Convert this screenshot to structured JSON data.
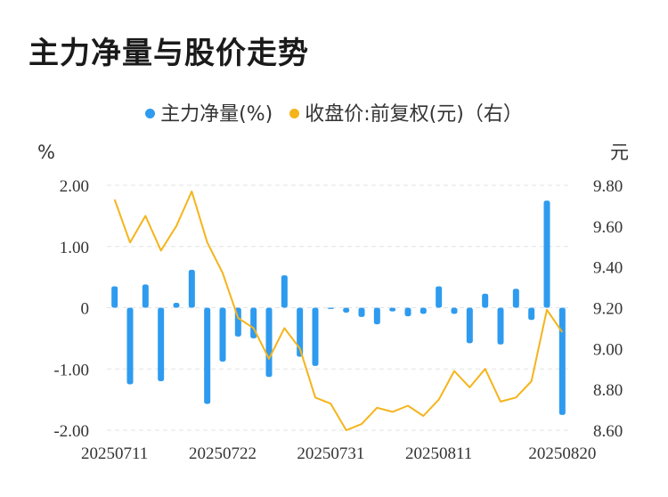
{
  "title": "主力净量与股价走势",
  "colors": {
    "bar": "#2e9bef",
    "line": "#f5b41b",
    "grid": "#e3e3e3",
    "text": "#333333"
  },
  "chart_data": {
    "type": "bar+line",
    "title": "主力净量与股价走势",
    "legend_position": "top-center",
    "series": [
      {
        "name": "主力净量(%)",
        "type": "bar",
        "axis": "left",
        "values": [
          0.35,
          -1.25,
          0.38,
          -1.2,
          0.08,
          0.62,
          -1.57,
          -0.88,
          -0.47,
          -0.5,
          -1.13,
          0.53,
          -0.8,
          -0.95,
          -0.02,
          -0.08,
          -0.15,
          -0.27,
          -0.06,
          -0.14,
          -0.1,
          0.35,
          -0.1,
          -0.58,
          0.23,
          -0.6,
          0.31,
          -0.2,
          1.75,
          -1.75
        ]
      },
      {
        "name": "收盘价:前复权(元)（右）",
        "type": "line",
        "axis": "right",
        "values": [
          9.73,
          9.52,
          9.65,
          9.48,
          9.6,
          9.77,
          9.52,
          9.37,
          9.15,
          9.1,
          8.95,
          9.1,
          9.0,
          8.76,
          8.73,
          8.6,
          8.63,
          8.71,
          8.69,
          8.72,
          8.67,
          8.75,
          8.89,
          8.81,
          8.9,
          8.74,
          8.76,
          8.84,
          9.19,
          9.08
        ]
      }
    ],
    "x_tick_labels": [
      "20250711",
      "20250722",
      "20250731",
      "20250811",
      "20250820"
    ],
    "x_tick_indices": [
      0,
      7,
      14,
      21,
      29
    ],
    "y_left": {
      "unit": "%",
      "range": [
        -2,
        2
      ],
      "ticks": [
        "2.00",
        "1.00",
        "0",
        "-1.00",
        "-2.00"
      ]
    },
    "y_right": {
      "unit": "元",
      "range": [
        8.6,
        9.8
      ],
      "ticks": [
        "9.80",
        "9.60",
        "9.40",
        "9.20",
        "9.00",
        "8.80",
        "8.60"
      ]
    },
    "grid": true
  },
  "legend": {
    "bar_label": "主力净量(%)",
    "line_label": "收盘价:前复权(元)（右）"
  }
}
